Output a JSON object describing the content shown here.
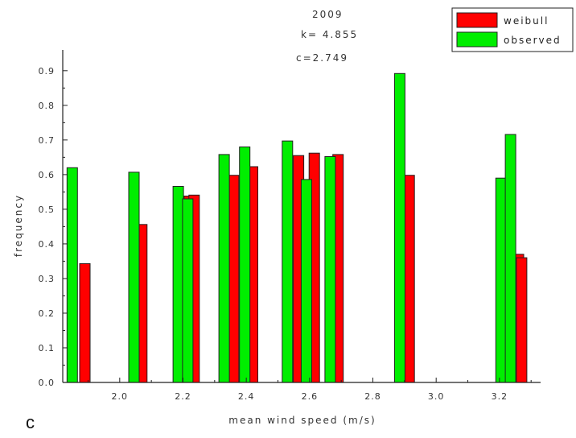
{
  "chart_data": {
    "type": "bar",
    "xlabel": "mean wind speed (m/s)",
    "ylabel": "frequency",
    "xlim": [
      1.82,
      3.33
    ],
    "ylim": [
      0,
      0.96
    ],
    "xticks": [
      2.0,
      2.2,
      2.4,
      2.6,
      2.8,
      3.0,
      3.2
    ],
    "xtick_labels": [
      "2.0",
      "2.2",
      "2.4",
      "2.6",
      "2.8",
      "3.0",
      "3.2"
    ],
    "yticks": [
      0,
      0.1,
      0.2,
      0.3,
      0.4,
      0.5,
      0.6,
      0.7,
      0.8,
      0.9
    ],
    "ytick_labels": [
      "0.0",
      "0.1",
      "0.2",
      "0.3",
      "0.4",
      "0.5",
      "0.6",
      "0.7",
      "0.8",
      "0.9"
    ],
    "annotations": [
      "2009",
      "k= 4.855",
      "c=2.749"
    ],
    "panel_label": "c",
    "legend_position": "top-right",
    "series": [
      {
        "name": "weibull",
        "color": "#ff0000",
        "points": [
          {
            "x": 1.89,
            "y": 0.343
          },
          {
            "x": 2.07,
            "y": 0.456
          },
          {
            "x": 2.22,
            "y": 0.538
          },
          {
            "x": 2.235,
            "y": 0.541
          },
          {
            "x": 2.36,
            "y": 0.598
          },
          {
            "x": 2.42,
            "y": 0.623
          },
          {
            "x": 2.565,
            "y": 0.655
          },
          {
            "x": 2.615,
            "y": 0.662
          },
          {
            "x": 2.69,
            "y": 0.658
          },
          {
            "x": 2.915,
            "y": 0.598
          },
          {
            "x": 3.26,
            "y": 0.37
          },
          {
            "x": 3.27,
            "y": 0.36
          }
        ]
      },
      {
        "name": "observed",
        "color": "#00ee00",
        "points": [
          {
            "x": 1.85,
            "y": 0.62
          },
          {
            "x": 2.045,
            "y": 0.607
          },
          {
            "x": 2.185,
            "y": 0.566
          },
          {
            "x": 2.215,
            "y": 0.53
          },
          {
            "x": 2.33,
            "y": 0.658
          },
          {
            "x": 2.395,
            "y": 0.68
          },
          {
            "x": 2.53,
            "y": 0.697
          },
          {
            "x": 2.59,
            "y": 0.586
          },
          {
            "x": 2.665,
            "y": 0.652
          },
          {
            "x": 2.885,
            "y": 0.892
          },
          {
            "x": 3.205,
            "y": 0.59
          },
          {
            "x": 3.235,
            "y": 0.716
          }
        ]
      }
    ]
  }
}
